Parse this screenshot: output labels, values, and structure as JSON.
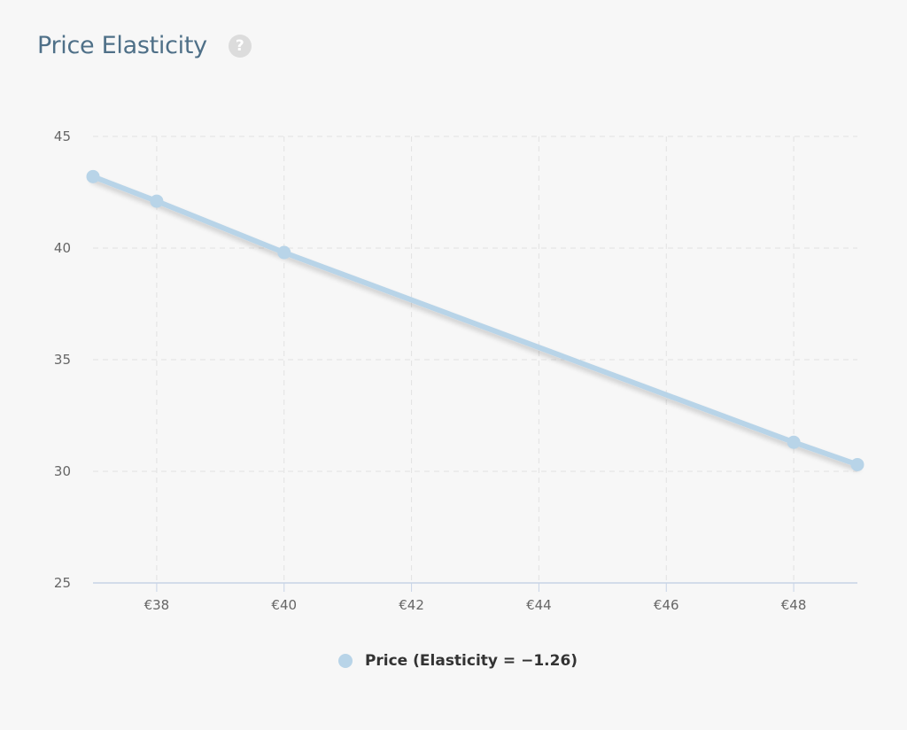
{
  "page": {
    "title": "Price Elasticity",
    "help_icon": "question-mark-icon",
    "help_glyph": "?"
  },
  "chart_data": {
    "type": "line",
    "title": "Price Elasticity",
    "xlabel": "",
    "ylabel": "",
    "x_ticks": [
      38,
      40,
      42,
      44,
      46,
      48
    ],
    "x_tick_labels": [
      "€38",
      "€40",
      "€42",
      "€44",
      "€46",
      "€48"
    ],
    "y_ticks": [
      25,
      30,
      35,
      40,
      45
    ],
    "y_tick_labels": [
      "25",
      "30",
      "35",
      "40",
      "45"
    ],
    "xlim": [
      37,
      49
    ],
    "ylim": [
      25,
      45
    ],
    "grid": true,
    "legend_position": "bottom-center",
    "series": [
      {
        "name": "Price (Elasticity = −1.26)",
        "color": "#b8d4e8",
        "x": [
          37,
          38,
          40,
          48,
          49
        ],
        "y": [
          43.2,
          42.1,
          39.8,
          31.3,
          30.3
        ]
      }
    ]
  }
}
